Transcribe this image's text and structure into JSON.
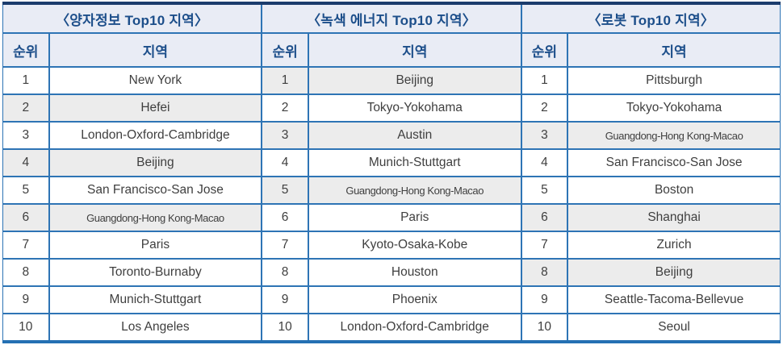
{
  "colors": {
    "outer_top_border": "#1B3C6D",
    "outer_bottom_border": "#2470B3",
    "grid_line": "#2E74B5",
    "header_bg": "#E9ECF5",
    "header_text": "#1C4E8A",
    "highlight_row_bg": "#ECECEC",
    "body_text": "#3F3F3F"
  },
  "column_headers": {
    "rank": "순위",
    "region": "지역"
  },
  "tables": [
    {
      "title": "〈양자정보 Top10 지역〉",
      "rows": [
        {
          "rank": "1",
          "region": "New York",
          "highlight": false
        },
        {
          "rank": "2",
          "region": "Hefei",
          "highlight": true
        },
        {
          "rank": "3",
          "region": "London-Oxford-Cambridge",
          "highlight": false
        },
        {
          "rank": "4",
          "region": "Beijing",
          "highlight": true
        },
        {
          "rank": "5",
          "region": "San Francisco-San Jose",
          "highlight": false
        },
        {
          "rank": "6",
          "region": "Guangdong-Hong Kong-Macao",
          "highlight": true
        },
        {
          "rank": "7",
          "region": "Paris",
          "highlight": false
        },
        {
          "rank": "8",
          "region": "Toronto-Burnaby",
          "highlight": false
        },
        {
          "rank": "9",
          "region": "Munich-Stuttgart",
          "highlight": false
        },
        {
          "rank": "10",
          "region": "Los Angeles",
          "highlight": false
        }
      ]
    },
    {
      "title": "〈녹색 에너지 Top10 지역〉",
      "rows": [
        {
          "rank": "1",
          "region": "Beijing",
          "highlight": true
        },
        {
          "rank": "2",
          "region": "Tokyo-Yokohama",
          "highlight": false
        },
        {
          "rank": "3",
          "region": "Austin",
          "highlight": true
        },
        {
          "rank": "4",
          "region": "Munich-Stuttgart",
          "highlight": false
        },
        {
          "rank": "5",
          "region": "Guangdong-Hong Kong-Macao",
          "highlight": true
        },
        {
          "rank": "6",
          "region": "Paris",
          "highlight": false
        },
        {
          "rank": "7",
          "region": "Kyoto-Osaka-Kobe",
          "highlight": false
        },
        {
          "rank": "8",
          "region": "Houston",
          "highlight": false
        },
        {
          "rank": "9",
          "region": "Phoenix",
          "highlight": false
        },
        {
          "rank": "10",
          "region": "London-Oxford-Cambridge",
          "highlight": false
        }
      ]
    },
    {
      "title": "〈로봇 Top10 지역〉",
      "rows": [
        {
          "rank": "1",
          "region": "Pittsburgh",
          "highlight": false
        },
        {
          "rank": "2",
          "region": "Tokyo-Yokohama",
          "highlight": false
        },
        {
          "rank": "3",
          "region": "Guangdong-Hong Kong-Macao",
          "highlight": true
        },
        {
          "rank": "4",
          "region": "San Francisco-San Jose",
          "highlight": false
        },
        {
          "rank": "5",
          "region": "Boston",
          "highlight": false
        },
        {
          "rank": "6",
          "region": "Shanghai",
          "highlight": true
        },
        {
          "rank": "7",
          "region": "Zurich",
          "highlight": false
        },
        {
          "rank": "8",
          "region": "Beijing",
          "highlight": true
        },
        {
          "rank": "9",
          "region": "Seattle-Tacoma-Bellevue",
          "highlight": false
        },
        {
          "rank": "10",
          "region": "Seoul",
          "highlight": false
        }
      ]
    }
  ]
}
